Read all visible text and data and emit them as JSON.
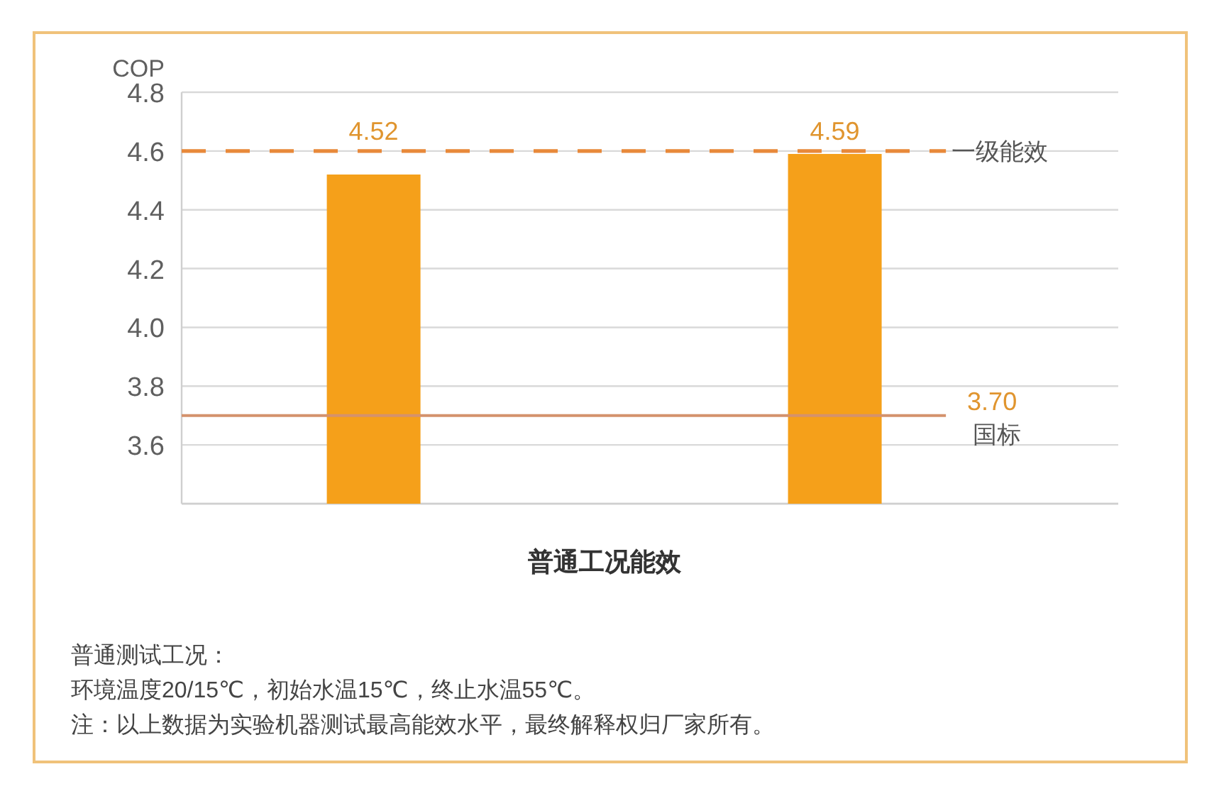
{
  "chart_data": {
    "type": "bar",
    "xlabel": "普通工况能效",
    "ylabel": "COP",
    "categories": [
      null,
      null
    ],
    "values": [
      4.52,
      4.59
    ],
    "color": "#f5a01a",
    "data_labels": true,
    "ylim": [
      3.4,
      4.8
    ],
    "yticks": [
      {
        "value": 3.4,
        "label": null
      },
      3.6,
      3.8,
      {
        "value": 4,
        "label": "4.0"
      },
      4.2,
      4.4,
      4.6,
      4.8
    ],
    "grid": "y",
    "tick_labels": "y",
    "ref_lines": [
      {
        "axis": "y",
        "value": 4.6,
        "label": "一级能效",
        "color": "#e8893a",
        "line_style": "dashed"
      },
      {
        "axis": "y",
        "value": 3.7,
        "label": "国标",
        "color": "#d4926c",
        "line_style": "solid"
      }
    ],
    "annotations": [
      "3.70",
      "普通测试工况：",
      "环境温度20/15℃，初始水温15℃，终止水温55℃。",
      "注：以上数据为实验机器测试最高能效水平，最终解释权归厂家所有。"
    ]
  }
}
